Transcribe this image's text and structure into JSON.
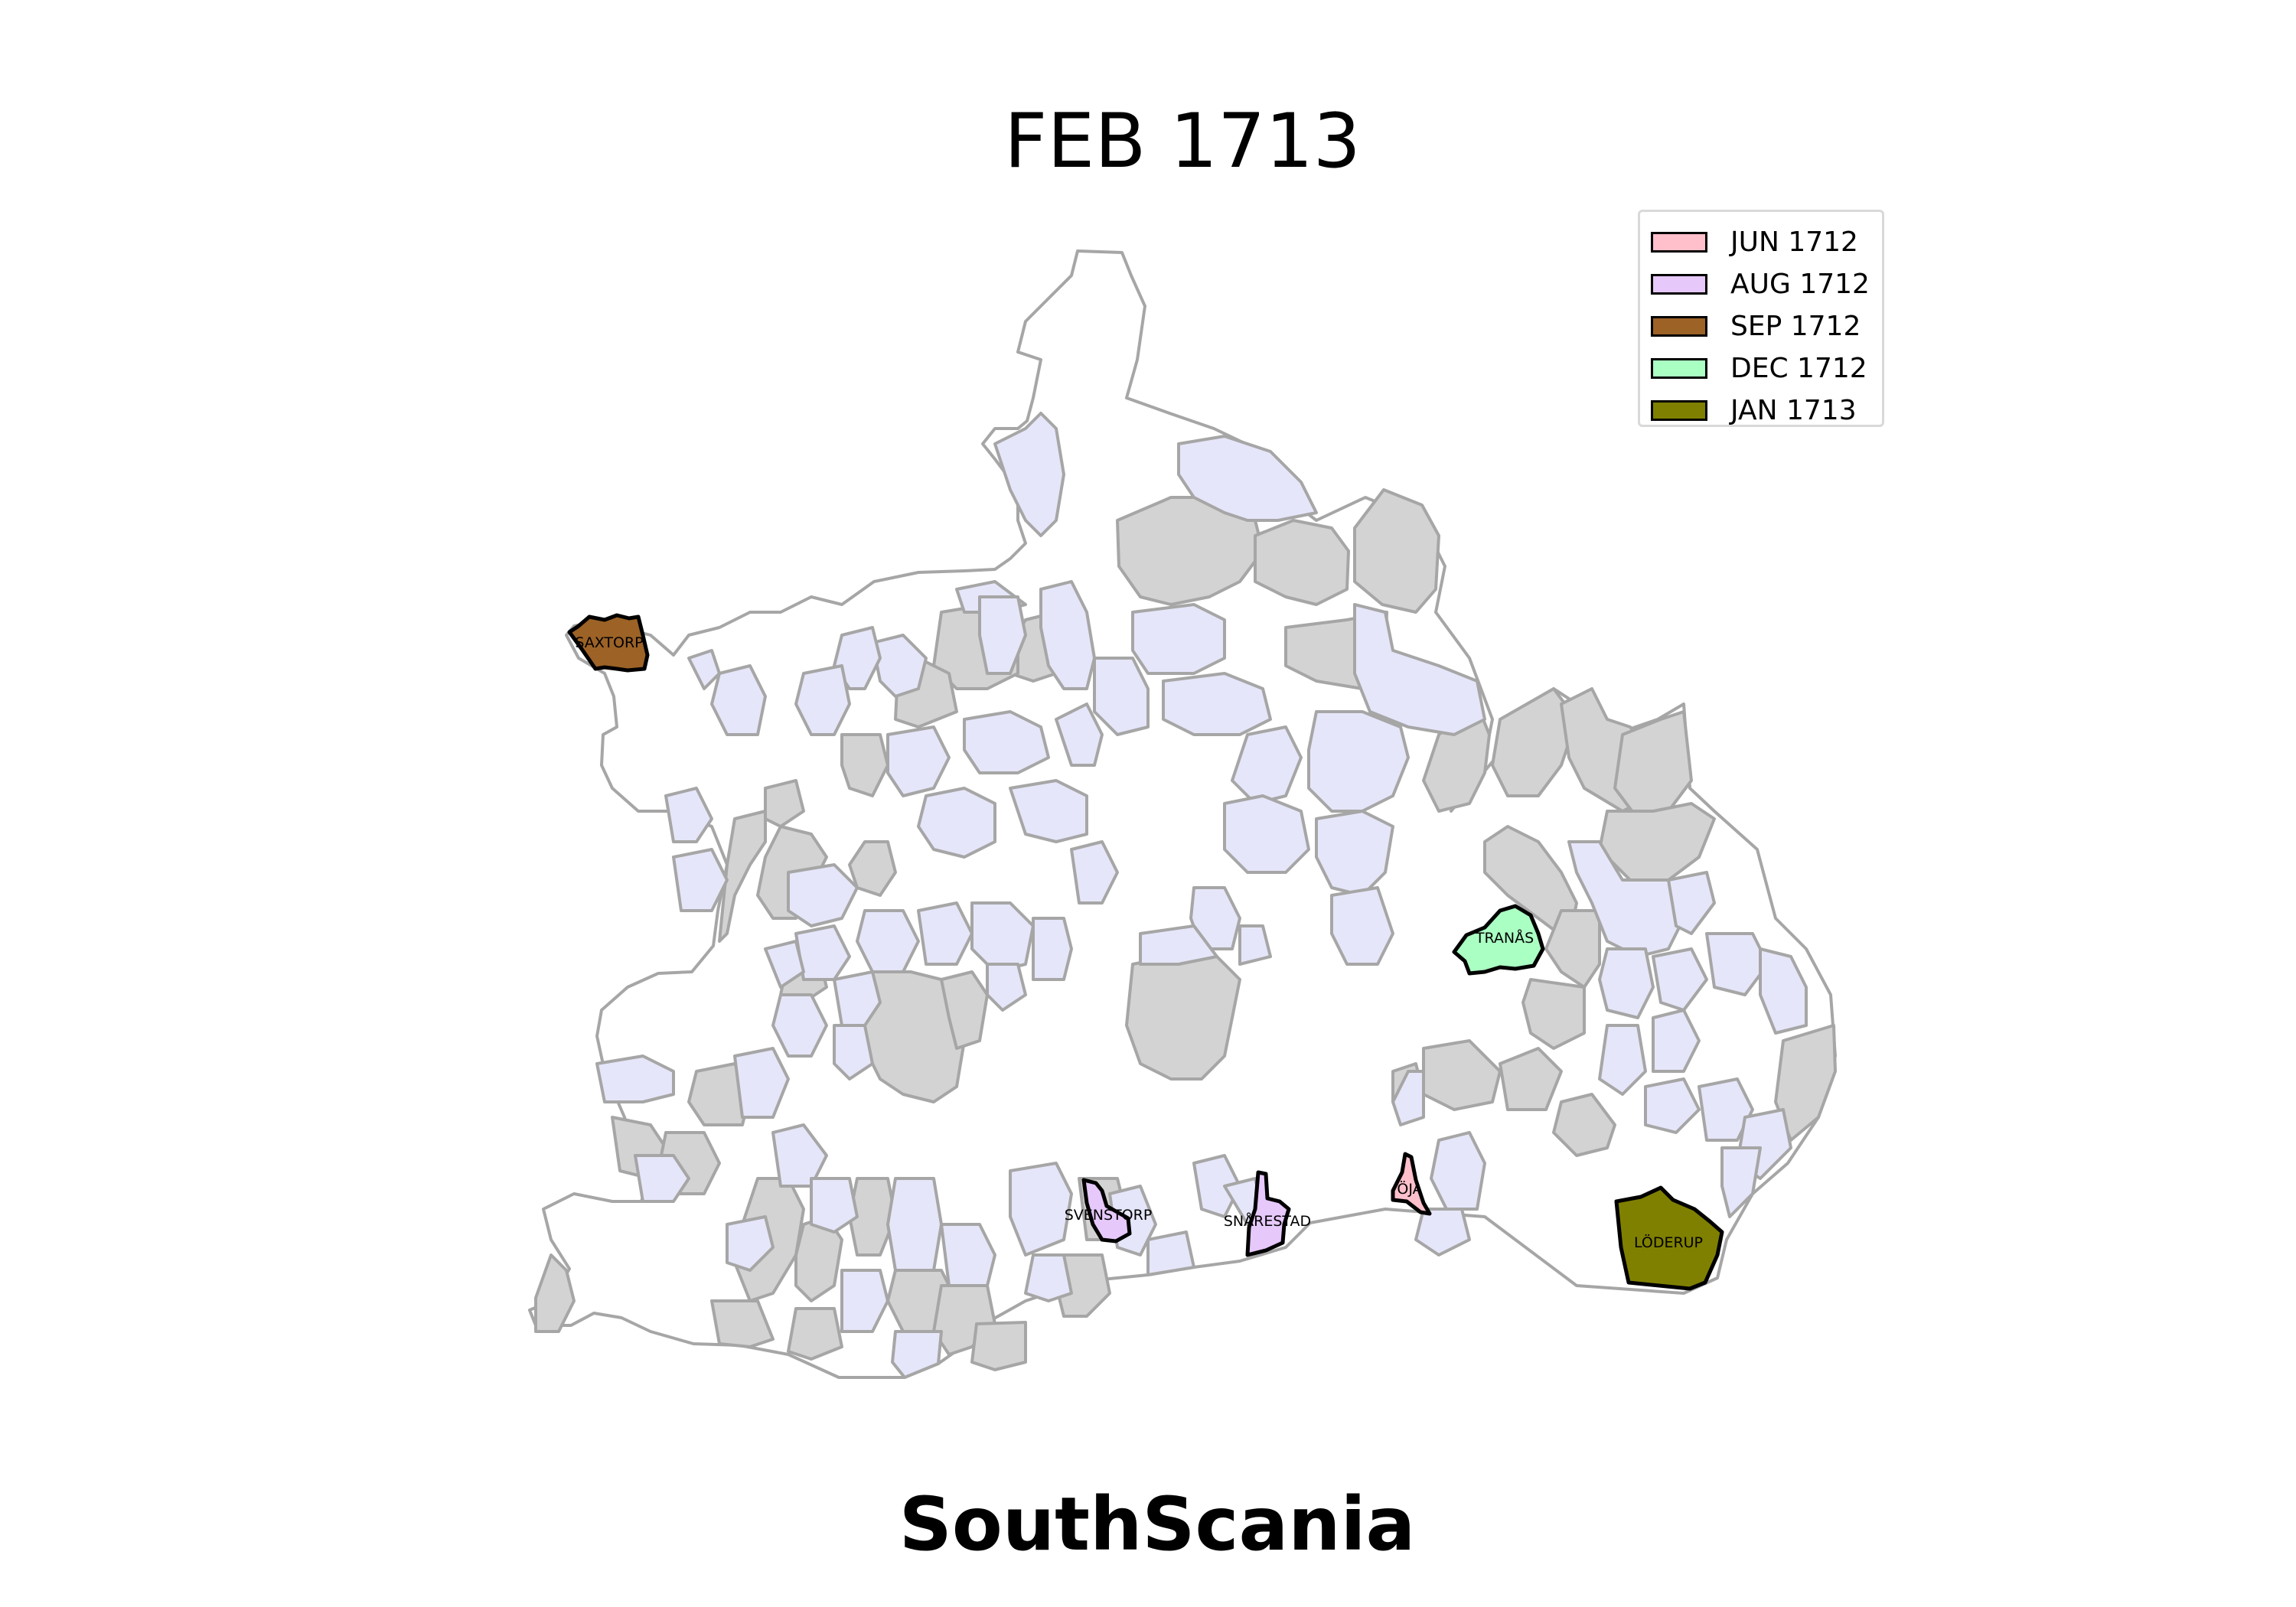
{
  "title": "FEB 1713",
  "region": "SouthScania",
  "colors": {
    "outline": "#a6a6a6",
    "unaffected": "#ffffff",
    "grey": "#d3d3d3",
    "lavender": "#e6e6fa"
  },
  "legend": [
    {
      "label": "JUN 1712",
      "color": "#ffc0cb"
    },
    {
      "label": "AUG 1712",
      "color": "#e6c8fa"
    },
    {
      "label": "SEP 1712",
      "color": "#9c6226"
    },
    {
      "label": "DEC 1712",
      "color": "#aaffc3"
    },
    {
      "label": "JAN 1713",
      "color": "#808000"
    }
  ],
  "highlighted_parishes": [
    {
      "name": "SAXTORP",
      "period": "SEP 1712"
    },
    {
      "name": "TRANÅS",
      "period": "DEC 1712"
    },
    {
      "name": "SVENSTORP",
      "period": "AUG 1712"
    },
    {
      "name": "SNÅRESTAD",
      "period": "AUG 1712"
    },
    {
      "name": "ÖJA",
      "period": "JUN 1712"
    },
    {
      "name": "LÖDERUP",
      "period": "JAN 1713"
    }
  ]
}
